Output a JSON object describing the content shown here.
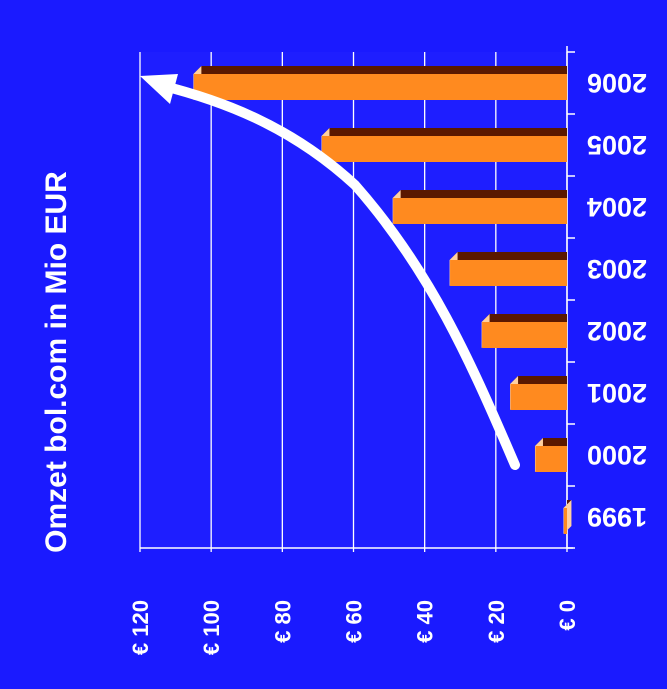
{
  "chart_data": {
    "type": "bar",
    "orientation": "horizontal, image rotated (years on right edge, value axis along bottom, read rotated)",
    "title": "Omzet bol.com in Mio EUR",
    "categories": [
      "1999",
      "2000",
      "2001",
      "2002",
      "2003",
      "2004",
      "2005",
      "2006"
    ],
    "values": [
      1,
      9,
      16,
      24,
      33,
      49,
      69,
      105
    ],
    "ylim": [
      0,
      120
    ],
    "ytick_labels": [
      "€ 0",
      "€ 20",
      "€ 40",
      "€ 60",
      "€ 80",
      "€ 100",
      "€ 120"
    ],
    "ytick_values": [
      0,
      20,
      40,
      60,
      80,
      100,
      120
    ],
    "grid": true,
    "legend": "none",
    "annotation": "white trend arrow",
    "colors": {
      "background": "#1a1aff",
      "plot_background": "#1e1eff",
      "bar_front": "#ff8a1f",
      "bar_top": "#5a1800",
      "bar_side": "#ffd0a0",
      "text": "#ffffff",
      "axis_text": "#ffffff",
      "arrow": "#ffffff"
    }
  }
}
